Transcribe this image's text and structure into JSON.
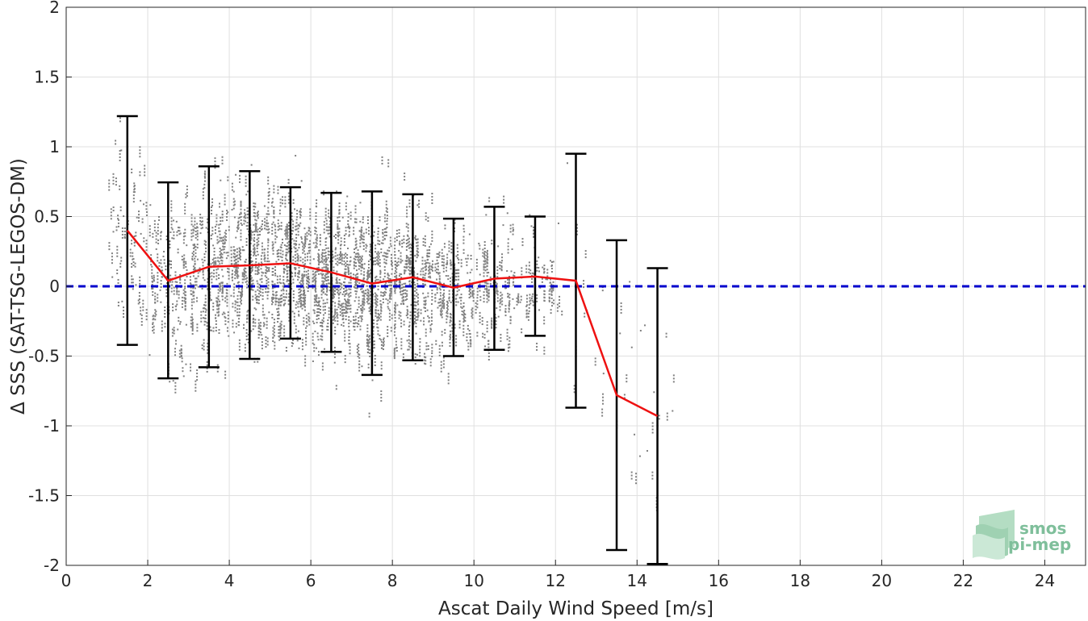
{
  "chart_data": {
    "type": "scatter",
    "xlabel": "Ascat Daily Wind Speed [m/s]",
    "ylabel": "Δ SSS (SAT-TSG-LEGOS-DM)",
    "xlim": [
      0,
      25
    ],
    "ylim": [
      -2,
      2
    ],
    "x_ticks": [
      0,
      2,
      4,
      6,
      8,
      10,
      12,
      14,
      16,
      18,
      20,
      22,
      24
    ],
    "y_ticks": [
      -2,
      -1.5,
      -1,
      -0.5,
      0,
      0.5,
      1,
      1.5,
      2
    ],
    "y_tick_labels": [
      "-2",
      "-1.5",
      "-1",
      "-0.5",
      "0",
      "0.5",
      "1",
      "1.5",
      "2"
    ],
    "grid": true,
    "colors": {
      "scatter": "#808080",
      "mean_line": "#ee1111",
      "zero_line": "#0000cc",
      "error_bars": "#000000"
    },
    "reference_line": {
      "y": 0,
      "style": "dashed"
    },
    "binned_stats": {
      "x": [
        1.5,
        2.5,
        3.5,
        4.5,
        5.5,
        6.5,
        7.5,
        8.5,
        9.5,
        10.5,
        11.5,
        12.5,
        13.5,
        14.5
      ],
      "mean": [
        0.4,
        0.04,
        0.14,
        0.15,
        0.165,
        0.1,
        0.02,
        0.065,
        -0.01,
        0.055,
        0.07,
        0.04,
        -0.78,
        -0.93
      ],
      "upper": [
        1.22,
        0.745,
        0.86,
        0.825,
        0.71,
        0.67,
        0.68,
        0.66,
        0.485,
        0.57,
        0.5,
        0.95,
        0.33,
        0.13
      ],
      "lower": [
        -0.42,
        -0.66,
        -0.58,
        -0.52,
        -0.375,
        -0.47,
        -0.635,
        -0.53,
        -0.5,
        -0.455,
        -0.355,
        -0.87,
        -1.89,
        -1.99
      ]
    },
    "scatter_clusters": [
      {
        "x": 1.5,
        "center": 0.4,
        "spread": 0.55,
        "n": 70
      },
      {
        "x": 2.5,
        "center": 0.05,
        "spread": 0.55,
        "n": 130
      },
      {
        "x": 3.5,
        "center": 0.14,
        "spread": 0.55,
        "n": 190
      },
      {
        "x": 4.5,
        "center": 0.15,
        "spread": 0.5,
        "n": 230
      },
      {
        "x": 5.5,
        "center": 0.16,
        "spread": 0.45,
        "n": 250
      },
      {
        "x": 6.5,
        "center": 0.1,
        "spread": 0.45,
        "n": 260
      },
      {
        "x": 7.5,
        "center": 0.03,
        "spread": 0.5,
        "n": 260
      },
      {
        "x": 8.5,
        "center": 0.06,
        "spread": 0.45,
        "n": 200
      },
      {
        "x": 9.5,
        "center": 0.0,
        "spread": 0.4,
        "n": 140
      },
      {
        "x": 10.5,
        "center": 0.05,
        "spread": 0.4,
        "n": 110
      },
      {
        "x": 11.5,
        "center": 0.07,
        "spread": 0.35,
        "n": 70
      },
      {
        "x": 12.5,
        "center": 0.05,
        "spread": 0.6,
        "n": 14
      },
      {
        "x": 13.5,
        "center": -0.8,
        "spread": 0.7,
        "n": 14
      },
      {
        "x": 14.5,
        "center": -0.9,
        "spread": 0.7,
        "n": 14
      }
    ]
  },
  "logo": {
    "line1": "smos",
    "line2": "pi-mep"
  }
}
